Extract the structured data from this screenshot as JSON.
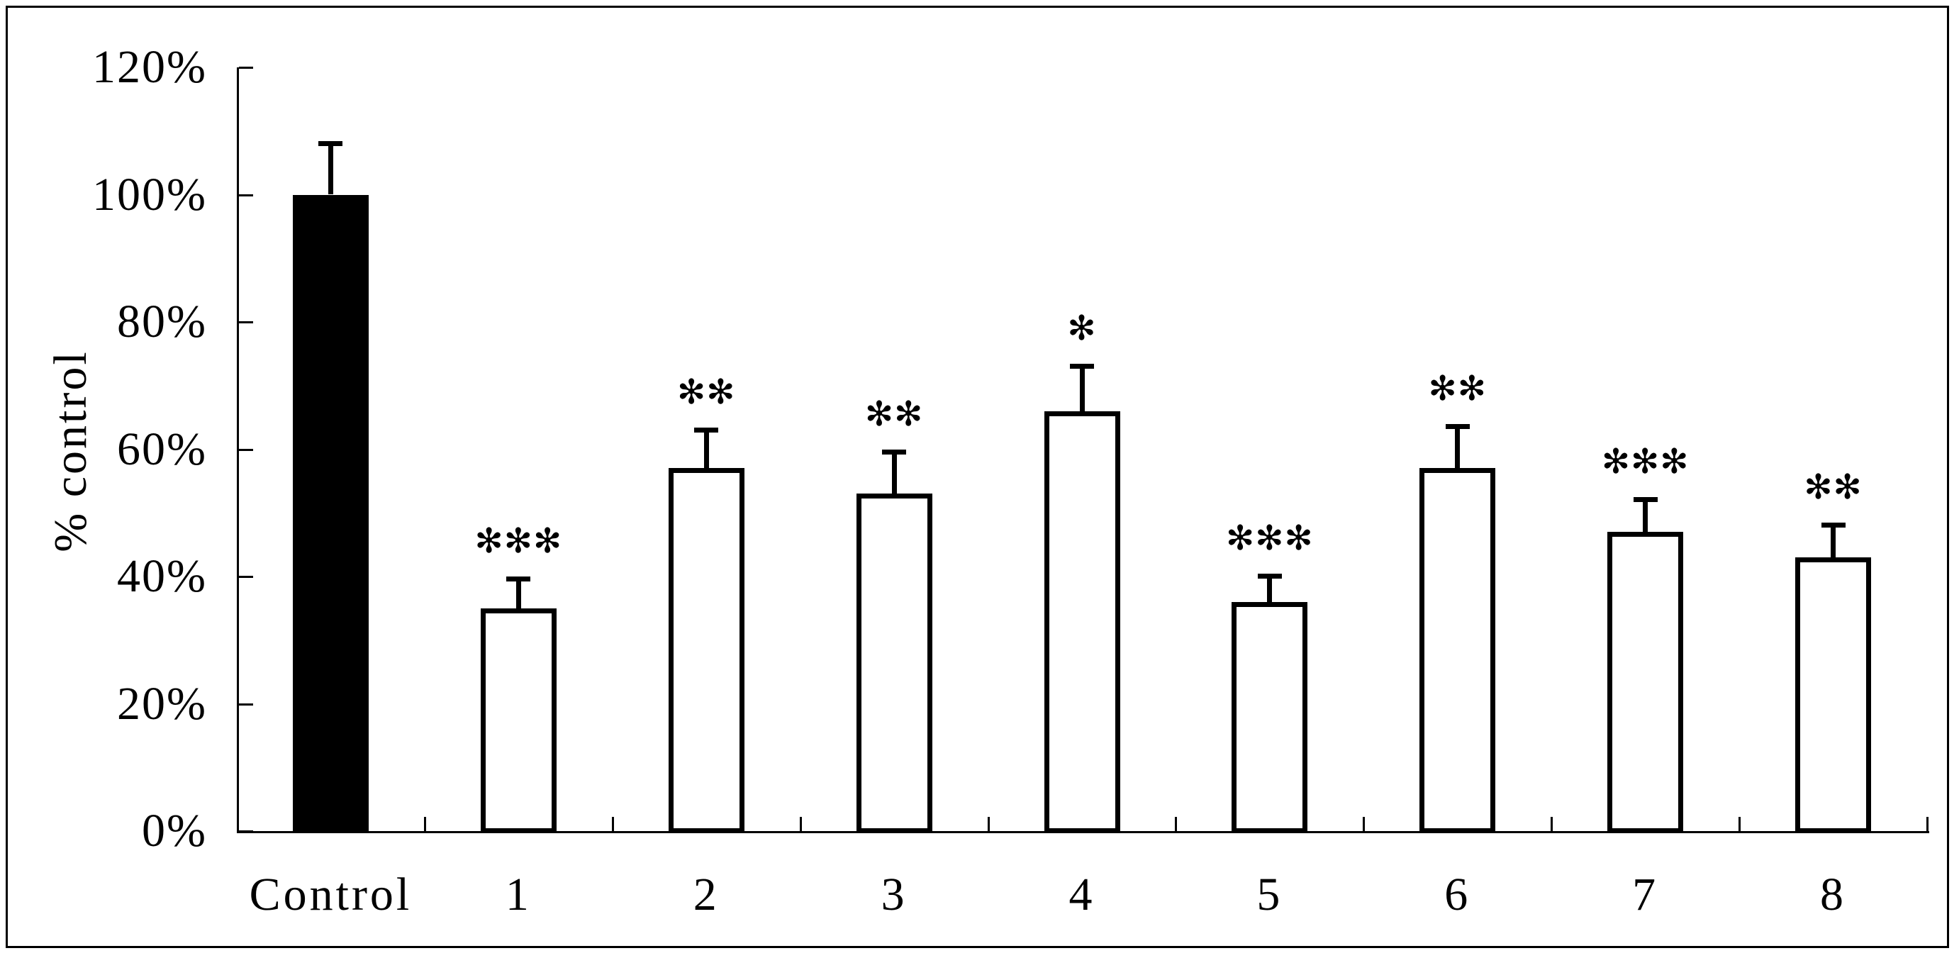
{
  "figure": {
    "background": "#ffffff",
    "ink": "#000000",
    "border_color": "#000000"
  },
  "chart_data": {
    "type": "bar",
    "title": "",
    "xlabel": "",
    "ylabel": "% control",
    "ylim": [
      0,
      120
    ],
    "grid": false,
    "legend": null,
    "y_tick_labels": [
      "120%",
      "100%",
      "80%",
      "60%",
      "40%",
      "20%",
      "0%"
    ],
    "y_tick_values": [
      120,
      100,
      80,
      60,
      40,
      20,
      0
    ],
    "categories": [
      "Control",
      "1",
      "2",
      "3",
      "4",
      "5",
      "6",
      "7",
      "8"
    ],
    "values": [
      100,
      35,
      57,
      53,
      66,
      36,
      57,
      47,
      43
    ],
    "error_plus": [
      8,
      4.5,
      6,
      6.5,
      7,
      4,
      6.5,
      5,
      5
    ],
    "significance": [
      "",
      "***",
      "**",
      "**",
      "*",
      "***",
      "**",
      "***",
      "**"
    ],
    "bar_fills": [
      "#000000",
      "#ffffff",
      "#ffffff",
      "#ffffff",
      "#ffffff",
      "#ffffff",
      "#ffffff",
      "#ffffff",
      "#ffffff"
    ],
    "asterisk_glyph": "✻"
  }
}
